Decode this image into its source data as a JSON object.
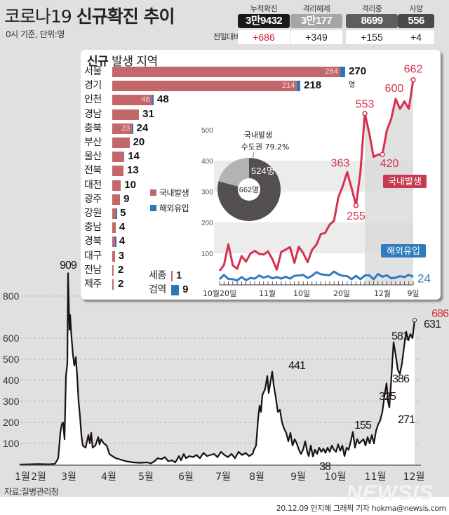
{
  "header": {
    "title_normal": "코로나19 ",
    "title_bold": "신규확진 추이",
    "subtitle": "0시 기준, 단위:명"
  },
  "stats": {
    "delta_label": "전일대비",
    "items": [
      {
        "label": "누적확진",
        "value": "3만9432",
        "delta": "+686",
        "bg": "#1a1a1a",
        "delta_color": "#cc2233"
      },
      {
        "label": "격리해제",
        "value": "3만177",
        "delta": "+349",
        "bg": "#a6a6a6",
        "delta_color": "#222222"
      },
      {
        "label": "격리중",
        "value": "8699",
        "delta": "+155",
        "bg": "#5e5e5e",
        "delta_color": "#222222"
      },
      {
        "label": "사망",
        "value": "556",
        "delta": "+4",
        "bg": "#4a4a4a",
        "delta_color": "#222222"
      }
    ]
  },
  "regions": {
    "title_bold": "신규",
    "title_normal": " 발생 지역",
    "unit": "명",
    "items": [
      {
        "name": "서울",
        "domestic": 264,
        "total": 270
      },
      {
        "name": "경기",
        "domestic": 214,
        "total": 218
      },
      {
        "name": "인천",
        "domestic": 46,
        "total": 48
      },
      {
        "name": "경남",
        "domestic": 31,
        "total": 31
      },
      {
        "name": "충북",
        "domestic": 23,
        "total": 24
      },
      {
        "name": "부산",
        "domestic": 20,
        "total": 20
      },
      {
        "name": "울산",
        "domestic": 14,
        "total": 14
      },
      {
        "name": "전북",
        "domestic": 13,
        "total": 13
      },
      {
        "name": "대전",
        "domestic": 10,
        "total": 10
      },
      {
        "name": "광주",
        "domestic": 9,
        "total": 9
      },
      {
        "name": "강원",
        "domestic": 4,
        "total": 5
      },
      {
        "name": "충남",
        "domestic": 4,
        "total": 4
      },
      {
        "name": "경북",
        "domestic": 3,
        "total": 4
      },
      {
        "name": "대구",
        "domestic": 3,
        "total": 3
      },
      {
        "name": "전남",
        "domestic": 2,
        "total": 2
      },
      {
        "name": "제주",
        "domestic": 2,
        "total": 2
      }
    ],
    "extras": [
      {
        "name": "세종",
        "domestic": 1,
        "imported": 0,
        "total": "1"
      },
      {
        "name": "검역",
        "domestic": 0,
        "imported": 9,
        "total": "9"
      }
    ],
    "legend": [
      {
        "label": "국내발생",
        "color": "#c4676a"
      },
      {
        "label": "해외유입",
        "color": "#2b78b8"
      }
    ]
  },
  "donut": {
    "title_line1": "국내발생",
    "title_line2": "수도권 79.2%",
    "capital_label": "524명",
    "center_label": "662명",
    "capital": 524,
    "total": 662
  },
  "colors": {
    "domestic_line": "#d6324f",
    "imported_line": "#2f7bbd",
    "main_line": "#1a1212",
    "bg": "#e0e0e0"
  },
  "chart_data": [
    {
      "type": "line",
      "title": "코로나19 신규확진 추이 (2020)",
      "xlabel": "",
      "ylabel": "명",
      "ylim": [
        0,
        900
      ],
      "yticks": [
        100,
        200,
        300,
        400,
        500,
        600,
        800
      ],
      "xticks": [
        "1월",
        "2월",
        "3월",
        "4월",
        "5월",
        "6월",
        "7월",
        "8월",
        "9월",
        "10월",
        "11월",
        "12월"
      ],
      "grid": true,
      "annotations": [
        {
          "label": "909",
          "value": 909,
          "date": "2월 29일"
        },
        {
          "label": "441",
          "value": 441,
          "date": "8월 27일"
        },
        {
          "label": "38",
          "value": 38,
          "date": "10월"
        },
        {
          "label": "155",
          "value": 155,
          "date": "11월"
        },
        {
          "label": "325",
          "value": 325,
          "date": "11월 말"
        },
        {
          "label": "386",
          "value": 386,
          "date": "11월 말"
        },
        {
          "label": "271",
          "value": 271,
          "date": "11월 말"
        },
        {
          "label": "581",
          "value": 581,
          "date": "12월"
        },
        {
          "label": "631",
          "value": 631,
          "date": "12월"
        },
        {
          "label": "686",
          "value": 686,
          "date": "12월 9일",
          "color": "#cc3333"
        }
      ],
      "series": [
        {
          "name": "신규확진",
          "points": [
            [
              28,
              0
            ],
            [
              40,
              1
            ],
            [
              55,
              2
            ],
            [
              70,
              1
            ],
            [
              78,
              3
            ],
            [
              80,
              12
            ],
            [
              83,
              30
            ],
            [
              86,
              150
            ],
            [
              88,
              190
            ],
            [
              90,
              200
            ],
            [
              92,
              120
            ],
            [
              94,
              420
            ],
            [
              96,
              480
            ],
            [
              97,
              909
            ],
            [
              99,
              640
            ],
            [
              100,
              710
            ],
            [
              102,
              600
            ],
            [
              104,
              520
            ],
            [
              106,
              470
            ],
            [
              108,
              510
            ],
            [
              110,
              420
            ],
            [
              112,
              300
            ],
            [
              114,
              230
            ],
            [
              116,
              140
            ],
            [
              118,
              90
            ],
            [
              122,
              80
            ],
            [
              126,
              140
            ],
            [
              128,
              100
            ],
            [
              130,
              150
            ],
            [
              132,
              80
            ],
            [
              136,
              90
            ],
            [
              140,
              130
            ],
            [
              142,
              95
            ],
            [
              144,
              120
            ],
            [
              148,
              100
            ],
            [
              152,
              90
            ],
            [
              156,
              50
            ],
            [
              160,
              40
            ],
            [
              165,
              30
            ],
            [
              170,
              25
            ],
            [
              180,
              15
            ],
            [
              190,
              10
            ],
            [
              200,
              8
            ],
            [
              210,
              10
            ],
            [
              215,
              5
            ],
            [
              220,
              15
            ],
            [
              225,
              30
            ],
            [
              230,
              25
            ],
            [
              235,
              35
            ],
            [
              240,
              15
            ],
            [
              245,
              20
            ],
            [
              250,
              10
            ],
            [
              255,
              40
            ],
            [
              258,
              20
            ],
            [
              262,
              50
            ],
            [
              265,
              30
            ],
            [
              270,
              40
            ],
            [
              275,
              35
            ],
            [
              280,
              45
            ],
            [
              285,
              30
            ],
            [
              290,
              55
            ],
            [
              295,
              40
            ],
            [
              300,
              45
            ],
            [
              305,
              50
            ],
            [
              310,
              35
            ],
            [
              315,
              60
            ],
            [
              320,
              45
            ],
            [
              325,
              35
            ],
            [
              330,
              50
            ],
            [
              335,
              30
            ],
            [
              340,
              60
            ],
            [
              345,
              45
            ],
            [
              350,
              55
            ],
            [
              355,
              40
            ],
            [
              360,
              50
            ],
            [
              362,
              70
            ],
            [
              365,
              90
            ],
            [
              368,
              220
            ],
            [
              370,
              280
            ],
            [
              372,
              250
            ],
            [
              374,
              330
            ],
            [
              378,
              360
            ],
            [
              381,
              420
            ],
            [
              383,
              340
            ],
            [
              385,
              380
            ],
            [
              388,
              441
            ],
            [
              390,
              380
            ],
            [
              393,
              320
            ],
            [
              396,
              250
            ],
            [
              399,
              260
            ],
            [
              402,
              200
            ],
            [
              405,
              170
            ],
            [
              408,
              150
            ],
            [
              411,
              110
            ],
            [
              414,
              150
            ],
            [
              417,
              90
            ],
            [
              420,
              120
            ],
            [
              423,
              100
            ],
            [
              426,
              70
            ],
            [
              429,
              50
            ],
            [
              432,
              70
            ],
            [
              435,
              110
            ],
            [
              438,
              60
            ],
            [
              440,
              40
            ],
            [
              443,
              90
            ],
            [
              446,
              38
            ],
            [
              449,
              70
            ],
            [
              452,
              50
            ],
            [
              455,
              80
            ],
            [
              458,
              60
            ],
            [
              461,
              75
            ],
            [
              464,
              55
            ],
            [
              467,
              80
            ],
            [
              470,
              60
            ],
            [
              473,
              90
            ],
            [
              476,
              70
            ],
            [
              479,
              60
            ],
            [
              482,
              95
            ],
            [
              485,
              65
            ],
            [
              488,
              90
            ],
            [
              491,
              40
            ],
            [
              494,
              80
            ],
            [
              497,
              70
            ],
            [
              500,
              110
            ],
            [
              503,
              155
            ],
            [
              506,
              80
            ],
            [
              509,
              120
            ],
            [
              512,
              100
            ],
            [
              515,
              110
            ],
            [
              518,
              120
            ],
            [
              521,
              90
            ],
            [
              524,
              130
            ],
            [
              527,
              100
            ],
            [
              530,
              140
            ],
            [
              533,
              100
            ],
            [
              536,
              160
            ],
            [
              539,
              190
            ],
            [
              542,
              210
            ],
            [
              545,
              250
            ],
            [
              548,
              325
            ],
            [
              551,
              386
            ],
            [
              553,
              300
            ],
            [
              555,
              271
            ],
            [
              558,
              420
            ],
            [
              561,
              581
            ],
            [
              564,
              520
            ],
            [
              567,
              450
            ],
            [
              570,
              430
            ],
            [
              573,
              480
            ],
            [
              576,
              560
            ],
            [
              579,
              631
            ],
            [
              582,
              590
            ],
            [
              585,
              620
            ],
            [
              588,
              600
            ],
            [
              591,
              686
            ]
          ]
        }
      ]
    },
    {
      "type": "line",
      "title": "국내발생 / 해외유입 (10월 20일 ~ 12월 9일)",
      "ylim": [
        0,
        500
      ],
      "yticks": [
        100,
        200,
        300,
        400,
        500
      ],
      "xticks": [
        "10월20일",
        "11월",
        "10일",
        "20일",
        "12월",
        "9일"
      ],
      "grid": true,
      "series": [
        {
          "name": "국내발생",
          "label_values": [
            363,
            255,
            553,
            420,
            600,
            662
          ],
          "values": [
            43,
            62,
            129,
            61,
            50,
            91,
            73,
            99,
            108,
            98,
            96,
            106,
            81,
            47,
            104,
            112,
            120,
            69,
            121,
            101,
            71,
            111,
            128,
            162,
            166,
            193,
            205,
            282,
            318,
            363,
            311,
            255,
            363,
            553,
            490,
            412,
            420,
            420,
            498,
            535,
            600,
            568,
            592,
            568,
            662
          ]
        },
        {
          "name": "해외유입",
          "label_values": [
            24
          ],
          "values": [
            16,
            30,
            17,
            16,
            12,
            23,
            13,
            20,
            18,
            28,
            21,
            26,
            19,
            23,
            18,
            24,
            18,
            27,
            28,
            30,
            20,
            27,
            39,
            32,
            30,
            29,
            41,
            32,
            27,
            26,
            16,
            27,
            16,
            28,
            29,
            16,
            33,
            24,
            29,
            19,
            21,
            26,
            23,
            30,
            24
          ]
        }
      ]
    }
  ],
  "inset_axis": {
    "yticks": [
      "100",
      "200",
      "300",
      "400",
      "500"
    ],
    "xticks": [
      "10월20일",
      "11월",
      "10일",
      "20일",
      "12월",
      "9일"
    ],
    "domestic_badge": "국내발생",
    "imported_badge": "해외유입",
    "imported_last": "24",
    "domestic_labels": [
      "363",
      "255",
      "553",
      "420",
      "600",
      "662"
    ]
  },
  "main_axis": {
    "yticks": [
      "100",
      "200",
      "300",
      "400",
      "500",
      "600",
      "800"
    ],
    "xticks": [
      "1월",
      "2월",
      "3월",
      "4월",
      "5월",
      "6월",
      "7월",
      "8월",
      "9월",
      "10월",
      "11월",
      "12월"
    ]
  },
  "footer": {
    "source": "자료:질병관리청",
    "logo": "NEWSIS",
    "credit": "20.12.09 안지혜 그래픽 기자 hokma@newsis.com"
  }
}
